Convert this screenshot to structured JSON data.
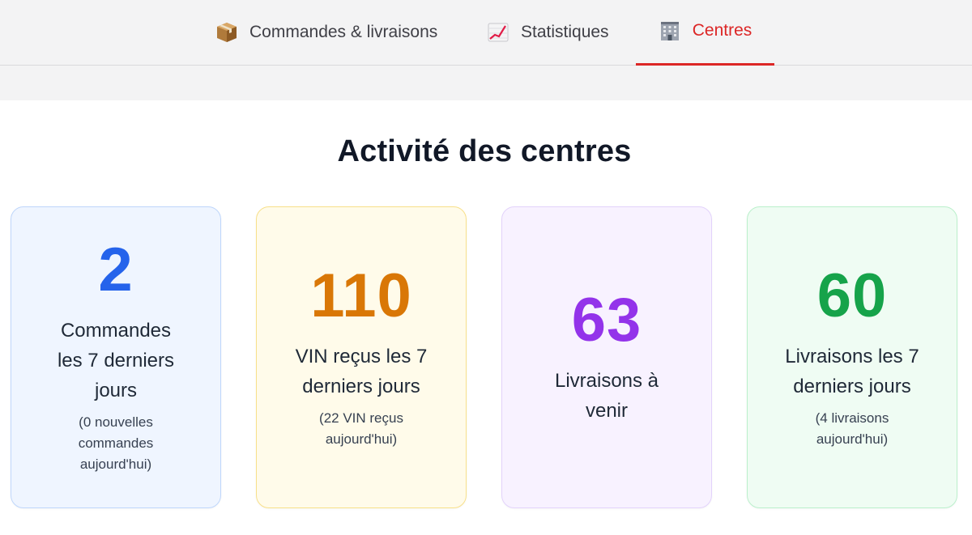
{
  "nav": {
    "tabs": [
      {
        "label": "Commandes & livraisons",
        "icon": "package-icon",
        "active": false
      },
      {
        "label": "Statistiques",
        "icon": "chart-icon",
        "active": false
      },
      {
        "label": "Centres",
        "icon": "office-building-icon",
        "active": true
      }
    ],
    "active_color": "#dc2626"
  },
  "page": {
    "title": "Activité des centres"
  },
  "cards": [
    {
      "value": "2",
      "label": "Commandes les 7 derniers jours",
      "sub": "(0 nouvelles commandes aujourd'hui)",
      "color": "#2563eb"
    },
    {
      "value": "110",
      "label": "VIN reçus les 7 derniers jours",
      "sub": "(22 VIN reçus aujourd'hui)",
      "color": "#d97706"
    },
    {
      "value": "63",
      "label": "Livraisons à venir",
      "sub": "",
      "color": "#9333ea"
    },
    {
      "value": "60",
      "label": "Livraisons les 7 derniers jours",
      "sub": "(4 livraisons aujourd'hui)",
      "color": "#16a34a"
    }
  ]
}
